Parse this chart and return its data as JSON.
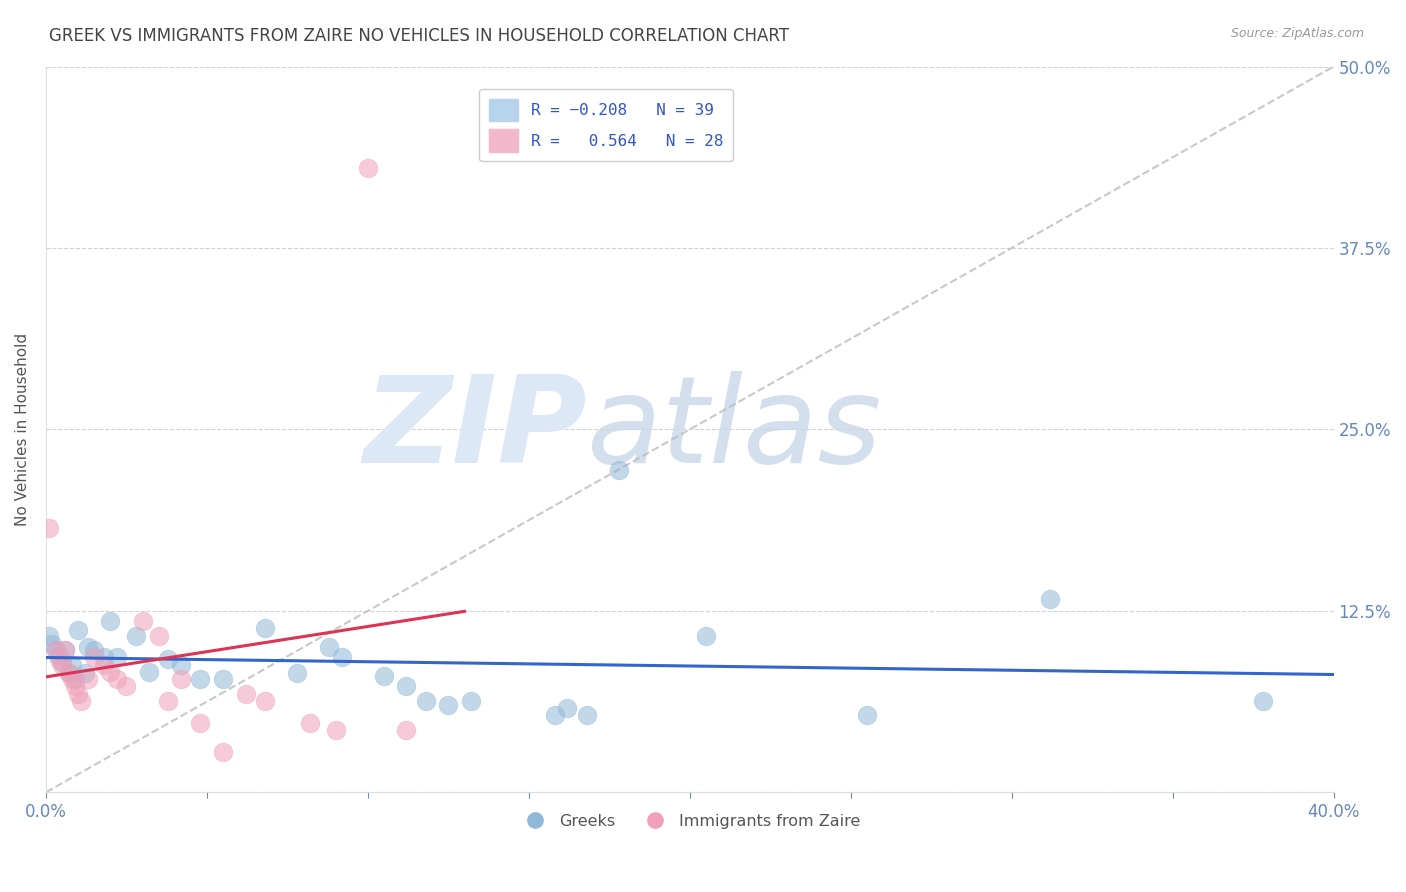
{
  "title": "GREEK VS IMMIGRANTS FROM ZAIRE NO VEHICLES IN HOUSEHOLD CORRELATION CHART",
  "source": "Source: ZipAtlas.com",
  "ylabel": "No Vehicles in Household",
  "xlim": [
    0.0,
    0.4
  ],
  "ylim": [
    0.0,
    0.5
  ],
  "xtick_vals": [
    0.0,
    0.05,
    0.1,
    0.15,
    0.2,
    0.25,
    0.3,
    0.35,
    0.4
  ],
  "xtick_labels": [
    "0.0%",
    "",
    "",
    "",
    "",
    "",
    "",
    "",
    "40.0%"
  ],
  "ytick_vals": [
    0.0,
    0.125,
    0.25,
    0.375,
    0.5
  ],
  "ytick_labels": [
    "",
    "12.5%",
    "25.0%",
    "37.5%",
    "50.0%"
  ],
  "blue_color": "#90b8d8",
  "pink_color": "#f0a0b8",
  "blue_line_color": "#3366cc",
  "pink_line_color": "#dd3355",
  "diag_color": "#bbbbbb",
  "bg_color": "#ffffff",
  "grid_color": "#cccccc",
  "title_color": "#444444",
  "axis_label_color": "#555555",
  "tick_color": "#6688bb",
  "watermark_zip": "ZIP",
  "watermark_atlas": "atlas",
  "watermark_color": "#dce8f5",
  "blue_points": [
    [
      0.001,
      0.108
    ],
    [
      0.002,
      0.102
    ],
    [
      0.003,
      0.098
    ],
    [
      0.004,
      0.094
    ],
    [
      0.005,
      0.09
    ],
    [
      0.006,
      0.098
    ],
    [
      0.007,
      0.082
    ],
    [
      0.008,
      0.088
    ],
    [
      0.009,
      0.078
    ],
    [
      0.01,
      0.112
    ],
    [
      0.012,
      0.082
    ],
    [
      0.013,
      0.1
    ],
    [
      0.015,
      0.098
    ],
    [
      0.018,
      0.093
    ],
    [
      0.02,
      0.118
    ],
    [
      0.022,
      0.093
    ],
    [
      0.028,
      0.108
    ],
    [
      0.032,
      0.083
    ],
    [
      0.038,
      0.092
    ],
    [
      0.042,
      0.088
    ],
    [
      0.048,
      0.078
    ],
    [
      0.055,
      0.078
    ],
    [
      0.068,
      0.113
    ],
    [
      0.078,
      0.082
    ],
    [
      0.088,
      0.1
    ],
    [
      0.092,
      0.093
    ],
    [
      0.105,
      0.08
    ],
    [
      0.112,
      0.073
    ],
    [
      0.118,
      0.063
    ],
    [
      0.125,
      0.06
    ],
    [
      0.132,
      0.063
    ],
    [
      0.158,
      0.053
    ],
    [
      0.162,
      0.058
    ],
    [
      0.168,
      0.053
    ],
    [
      0.178,
      0.222
    ],
    [
      0.205,
      0.108
    ],
    [
      0.255,
      0.053
    ],
    [
      0.312,
      0.133
    ],
    [
      0.378,
      0.063
    ]
  ],
  "pink_points": [
    [
      0.001,
      0.182
    ],
    [
      0.003,
      0.098
    ],
    [
      0.004,
      0.092
    ],
    [
      0.005,
      0.088
    ],
    [
      0.006,
      0.098
    ],
    [
      0.007,
      0.082
    ],
    [
      0.008,
      0.078
    ],
    [
      0.009,
      0.073
    ],
    [
      0.01,
      0.068
    ],
    [
      0.011,
      0.063
    ],
    [
      0.013,
      0.078
    ],
    [
      0.015,
      0.093
    ],
    [
      0.018,
      0.088
    ],
    [
      0.02,
      0.083
    ],
    [
      0.022,
      0.078
    ],
    [
      0.025,
      0.073
    ],
    [
      0.03,
      0.118
    ],
    [
      0.035,
      0.108
    ],
    [
      0.038,
      0.063
    ],
    [
      0.042,
      0.078
    ],
    [
      0.048,
      0.048
    ],
    [
      0.055,
      0.028
    ],
    [
      0.062,
      0.068
    ],
    [
      0.068,
      0.063
    ],
    [
      0.082,
      0.048
    ],
    [
      0.09,
      0.043
    ],
    [
      0.1,
      0.43
    ],
    [
      0.112,
      0.043
    ]
  ]
}
